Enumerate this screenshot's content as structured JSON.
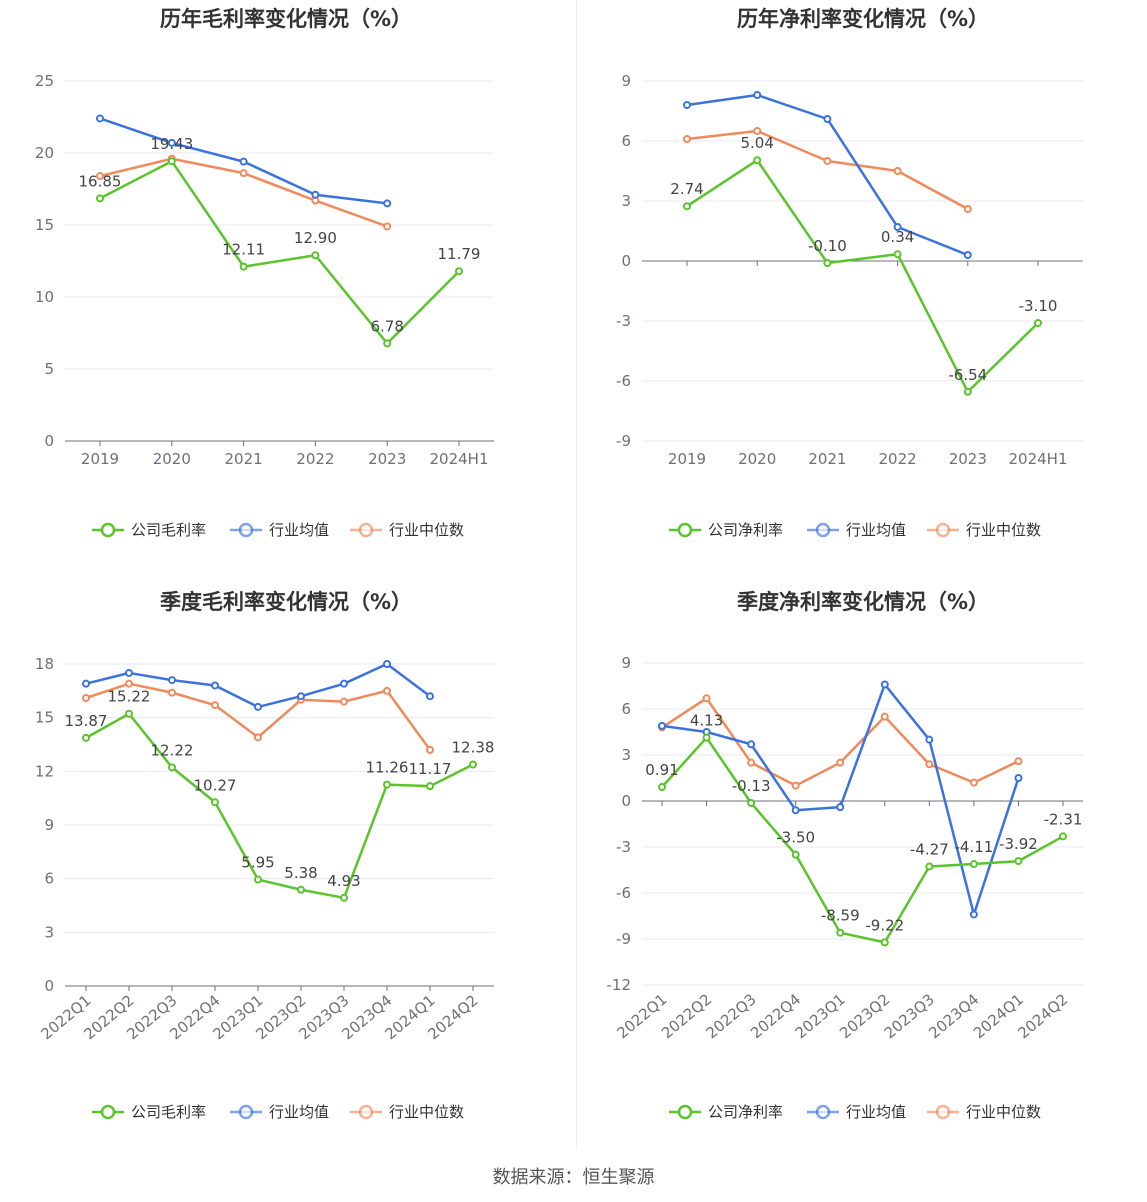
{
  "source": "数据来源：恒生聚源",
  "legend_labels": {
    "company_gross": "公司毛利率",
    "company_net": "公司净利率",
    "industry_avg": "行业均值",
    "industry_median": "行业中位数"
  },
  "colors": {
    "company": "#5ac42b",
    "industry_avg": "#3b73de",
    "industry_median": "#f08a5d"
  },
  "chart_data": [
    {
      "type": "line",
      "title": "历年毛利率变化情况（%）",
      "categories": [
        "2019",
        "2020",
        "2021",
        "2022",
        "2023",
        "2024H1"
      ],
      "ylim": [
        0,
        25
      ],
      "yticks": [
        0,
        5,
        10,
        15,
        20,
        25
      ],
      "grid": true,
      "legend_position": "bottom",
      "series": [
        {
          "name": "公司毛利率",
          "values": [
            16.85,
            19.43,
            12.11,
            12.9,
            6.78,
            11.79
          ],
          "labels": [
            "16.85",
            "19.43",
            "12.11",
            "12.90",
            "6.78",
            "11.79"
          ]
        },
        {
          "name": "行业均值",
          "values": [
            22.4,
            20.7,
            19.4,
            17.1,
            16.5,
            null
          ]
        },
        {
          "name": "行业中位数",
          "values": [
            18.4,
            19.6,
            18.6,
            16.7,
            14.9,
            null
          ]
        }
      ]
    },
    {
      "type": "line",
      "title": "历年净利率变化情况（%）",
      "categories": [
        "2019",
        "2020",
        "2021",
        "2022",
        "2023",
        "2024H1"
      ],
      "ylim": [
        -9,
        9
      ],
      "yticks": [
        -9,
        -6,
        -3,
        0,
        3,
        6,
        9
      ],
      "grid": true,
      "legend_position": "bottom",
      "series": [
        {
          "name": "公司净利率",
          "values": [
            2.74,
            5.04,
            -0.1,
            0.34,
            -6.54,
            -3.1
          ],
          "labels": [
            "2.74",
            "5.04",
            "-0.10",
            "0.34",
            "-6.54",
            "-3.10"
          ]
        },
        {
          "name": "行业均值",
          "values": [
            7.8,
            8.3,
            7.1,
            1.7,
            0.3,
            null
          ]
        },
        {
          "name": "行业中位数",
          "values": [
            6.1,
            6.5,
            5.0,
            4.5,
            2.6,
            null
          ]
        }
      ]
    },
    {
      "type": "line",
      "title": "季度毛利率变化情况（%）",
      "categories": [
        "2022Q1",
        "2022Q2",
        "2022Q3",
        "2022Q4",
        "2023Q1",
        "2023Q2",
        "2023Q3",
        "2023Q4",
        "2024Q1",
        "2024Q2"
      ],
      "ylim": [
        0,
        18
      ],
      "yticks": [
        0,
        3,
        6,
        9,
        12,
        15,
        18
      ],
      "grid": true,
      "legend_position": "bottom",
      "series": [
        {
          "name": "公司毛利率",
          "values": [
            13.87,
            15.22,
            12.22,
            10.27,
            5.95,
            5.38,
            4.93,
            11.26,
            11.17,
            12.38
          ],
          "labels": [
            "13.87",
            "15.22",
            "12.22",
            "10.27",
            "5.95",
            "5.38",
            "4.93",
            "11.26",
            "11.17",
            "12.38"
          ]
        },
        {
          "name": "行业均值",
          "values": [
            16.9,
            17.5,
            17.1,
            16.8,
            15.6,
            16.2,
            16.9,
            18.0,
            16.2,
            null
          ]
        },
        {
          "name": "行业中位数",
          "values": [
            16.1,
            16.9,
            16.4,
            15.7,
            13.9,
            16.0,
            15.9,
            16.5,
            13.2,
            null
          ]
        }
      ]
    },
    {
      "type": "line",
      "title": "季度净利率变化情况（%）",
      "categories": [
        "2022Q1",
        "2022Q2",
        "2022Q3",
        "2022Q4",
        "2023Q1",
        "2023Q2",
        "2023Q3",
        "2023Q4",
        "2024Q1",
        "2024Q2"
      ],
      "ylim": [
        -12,
        9
      ],
      "yticks": [
        -12,
        -9,
        -6,
        -3,
        0,
        3,
        6,
        9
      ],
      "grid": true,
      "legend_position": "bottom",
      "series": [
        {
          "name": "公司净利率",
          "values": [
            0.91,
            4.13,
            -0.13,
            -3.5,
            -8.59,
            -9.22,
            -4.27,
            -4.11,
            -3.92,
            -2.31
          ],
          "labels": [
            "0.91",
            "4.13",
            "-0.13",
            "-3.50",
            "-8.59",
            "-9.22",
            "-4.27",
            "-4.11",
            "-3.92",
            "-2.31"
          ]
        },
        {
          "name": "行业均值",
          "values": [
            4.9,
            4.5,
            3.7,
            -0.6,
            -0.4,
            7.6,
            4.0,
            -7.4,
            1.5,
            null
          ]
        },
        {
          "name": "行业中位数",
          "values": [
            4.8,
            6.7,
            2.5,
            1.0,
            2.5,
            5.5,
            2.4,
            1.2,
            2.6,
            null
          ]
        }
      ]
    }
  ]
}
